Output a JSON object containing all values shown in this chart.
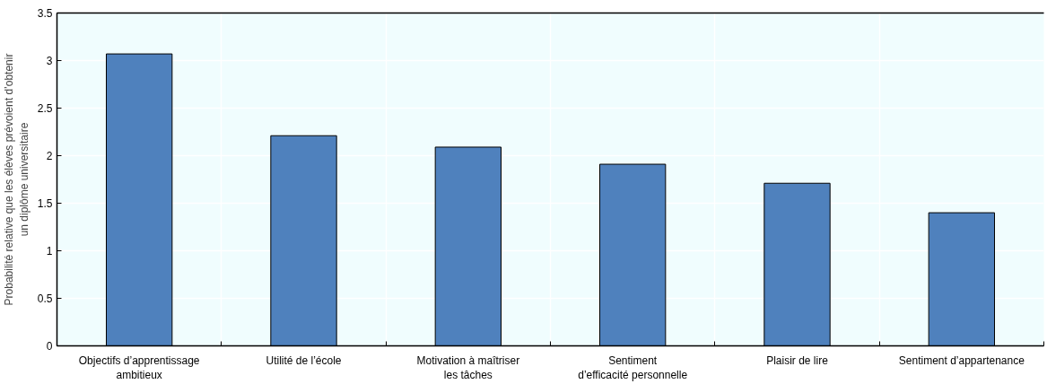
{
  "chart_data": {
    "type": "bar",
    "ylabel": "Probabilité relative que les élèves prévoient d’obtenir\nun diplôme universitaire",
    "categories": [
      "Objectifs d’apprentissage\nambitieux",
      "Utilité de l’école",
      "Motivation à maîtriser\nles tâches",
      "Sentiment\nd’efficacité personnelle",
      "Plaisir de lire",
      "Sentiment d’appartenance"
    ],
    "values": [
      3.07,
      2.21,
      2.09,
      1.91,
      1.71,
      1.4
    ],
    "color": "#4f81bd",
    "ylim": [
      0,
      3.5
    ],
    "yticks": [
      0,
      0.5,
      1,
      1.5,
      2,
      2.5,
      3,
      3.5
    ],
    "grid": true
  }
}
